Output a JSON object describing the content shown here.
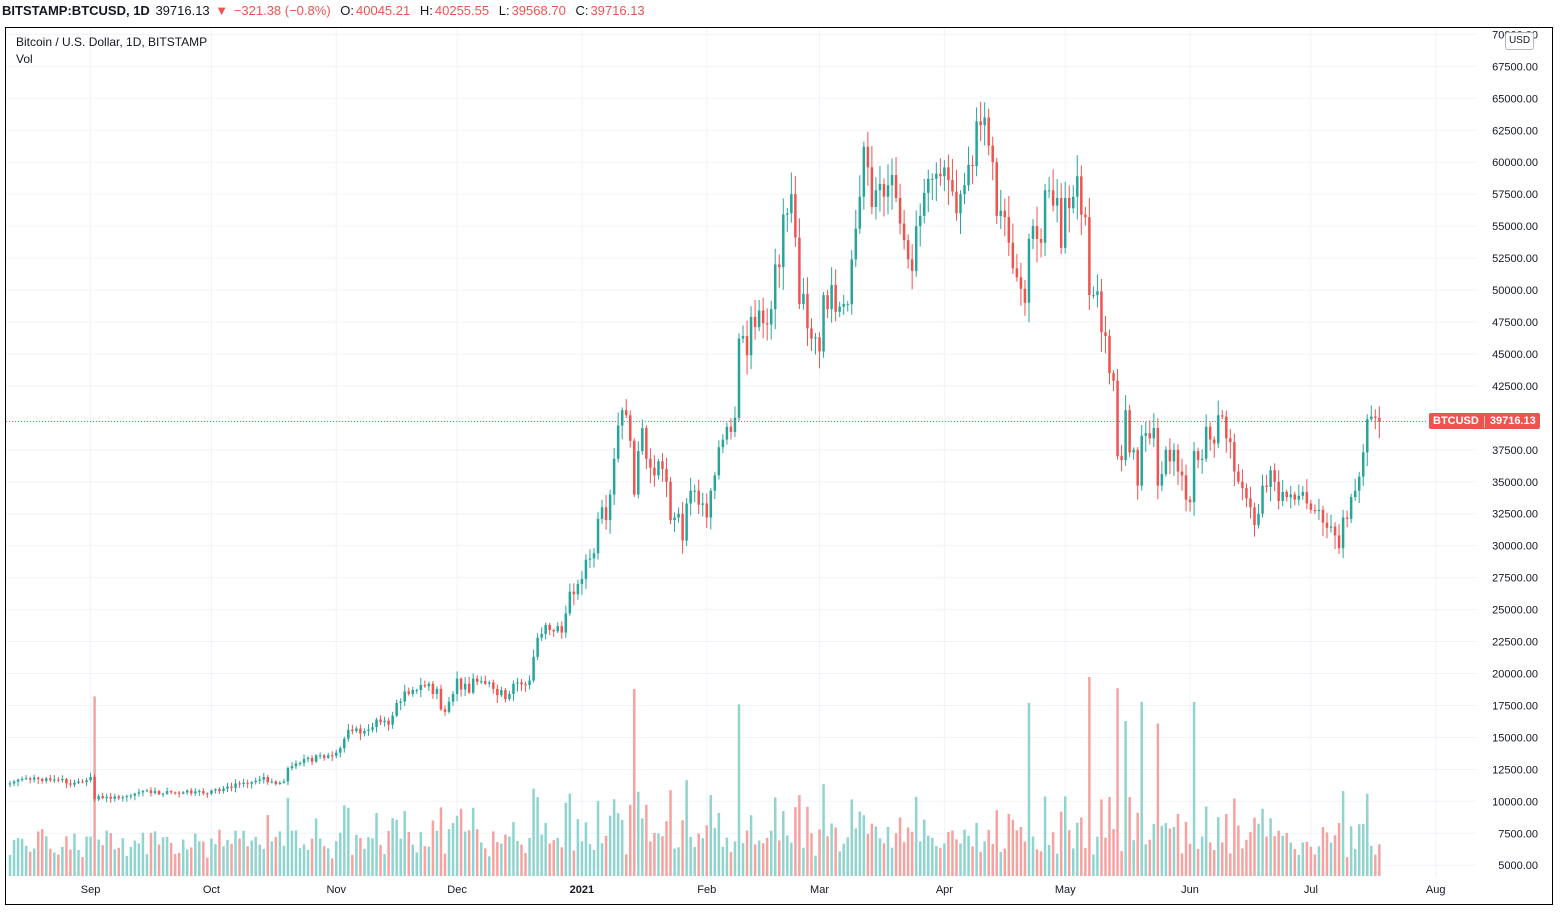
{
  "header": {
    "symbol": "BITSTAMP:BTCUSD, 1D",
    "last": "39716.13",
    "change_arrow": "▼",
    "change": "−321.38 (−0.8%)",
    "open_label": "O:",
    "open": "40045.21",
    "high_label": "H:",
    "high": "40255.55",
    "low_label": "L:",
    "low": "39568.70",
    "close_label": "C:",
    "close": "39716.13"
  },
  "legend": {
    "title": "Bitcoin / U.S. Dollar, 1D, BITSTAMP",
    "volume_label": "Vol"
  },
  "currency": "USD",
  "price_tag": {
    "symbol": "BTCUSD",
    "value": "39716.13"
  },
  "colors": {
    "up": "#26a69a",
    "down": "#ef5350",
    "up_volume": "#8fd4ce",
    "down_volume": "#f5a3a1",
    "grid": "#f0f3fa",
    "last_price_line": "#ef5350"
  },
  "chart_data": {
    "type": "candlestick",
    "title": "Bitcoin / U.S. Dollar, 1D, BITSTAMP",
    "y_axis": {
      "min": 4000,
      "max": 70500,
      "ticks": [
        5000,
        7500,
        10000,
        12500,
        15000,
        17500,
        20000,
        22500,
        25000,
        27500,
        30000,
        32500,
        35000,
        37500,
        40000,
        42500,
        45000,
        47500,
        50000,
        52500,
        55000,
        57500,
        60000,
        62500,
        65000,
        67500,
        70000
      ],
      "tick_labels": [
        "5000.00",
        "7500.00",
        "10000.00",
        "12500.00",
        "15000.00",
        "17500.00",
        "20000.00",
        "22500.00",
        "25000.00",
        "27500.00",
        "30000.00",
        "32500.00",
        "35000.00",
        "37500.00",
        "40000.00",
        "42500.00",
        "45000.00",
        "47500.00",
        "50000.00",
        "52500.00",
        "55000.00",
        "57500.00",
        "60000.00",
        "62500.00",
        "65000.00",
        "67500.00",
        "70000.00"
      ]
    },
    "x_axis": {
      "start_date": "2020-08-11",
      "end_date": "2021-08-11",
      "ticks": [
        {
          "date": "2020-09-01",
          "label": "Sep"
        },
        {
          "date": "2020-10-01",
          "label": "Oct"
        },
        {
          "date": "2020-11-01",
          "label": "Nov"
        },
        {
          "date": "2020-12-01",
          "label": "Dec"
        },
        {
          "date": "2021-01-01",
          "label": "2021"
        },
        {
          "date": "2021-02-01",
          "label": "Feb"
        },
        {
          "date": "2021-03-01",
          "label": "Mar"
        },
        {
          "date": "2021-04-01",
          "label": "Apr"
        },
        {
          "date": "2021-05-01",
          "label": "May"
        },
        {
          "date": "2021-06-01",
          "label": "Jun"
        },
        {
          "date": "2021-07-01",
          "label": "Jul"
        },
        {
          "date": "2021-08-01",
          "label": "Aug"
        }
      ]
    },
    "series_start_date": "2020-08-12",
    "closes": [
      11400,
      11550,
      11700,
      11750,
      11800,
      11700,
      11850,
      11750,
      11600,
      11800,
      11650,
      11700,
      11650,
      11750,
      11400,
      11300,
      11450,
      11550,
      11500,
      11650,
      11900,
      10150,
      10400,
      10250,
      10350,
      10200,
      10380,
      10250,
      10320,
      10400,
      10450,
      10600,
      10700,
      10800,
      10850,
      10650,
      10800,
      10550,
      10600,
      10800,
      10700,
      10680,
      10600,
      10700,
      10850,
      10620,
      10770,
      10800,
      10620,
      10600,
      10850,
      10950,
      10800,
      11000,
      11150,
      11050,
      11400,
      11350,
      11450,
      11380,
      11500,
      11600,
      11700,
      11900,
      11500,
      11550,
      11350,
      11450,
      11550,
      12600,
      12750,
      12950,
      13000,
      13300,
      13400,
      13100,
      13600,
      13600,
      13400,
      13600,
      13560,
      13800,
      14150,
      14900,
      15600,
      15500,
      15700,
      15300,
      15500,
      15600,
      15800,
      16400,
      16200,
      16300,
      16000,
      16700,
      17700,
      17800,
      18600,
      18400,
      18700,
      18700,
      19100,
      19000,
      19200,
      18400,
      18800,
      17200,
      17000,
      17800,
      18400,
      19600,
      18750,
      19200,
      18500,
      19600,
      19350,
      19400,
      19200,
      19300,
      18800,
      18300,
      18700,
      18000,
      18400,
      19200,
      19300,
      19150,
      19100,
      19450,
      21300,
      22800,
      23100,
      23800,
      23400,
      23300,
      23700,
      23200,
      24700,
      26400,
      26200,
      27000,
      27400,
      28900,
      29000,
      29400,
      32100,
      33000,
      32000,
      34000,
      36800,
      39400,
      40600,
      40200,
      38200,
      34000,
      37400,
      39200,
      36800,
      36100,
      35500,
      36600,
      36000,
      35000,
      32000,
      32200,
      32500,
      30400,
      33300,
      34300,
      34300,
      33200,
      33300,
      32200,
      34300,
      35500,
      37700,
      38300,
      39300,
      38900,
      40000,
      46200,
      46400,
      44900,
      47900,
      47100,
      48400,
      47400,
      47300,
      48500,
      52000,
      51800,
      55900,
      56000,
      57500,
      54100,
      48900,
      49700,
      47000,
      46200,
      46300,
      45200,
      49600,
      48500,
      50400,
      48300,
      48700,
      48900,
      48900,
      52400,
      54800,
      57300,
      61200,
      59600,
      56500,
      57800,
      58300,
      57300,
      58200,
      59000,
      57200,
      55200,
      53900,
      52400,
      51500,
      55000,
      55800,
      57600,
      58700,
      58700,
      59100,
      58900,
      59600,
      58600,
      57700,
      56000,
      57500,
      58200,
      59800,
      59700,
      63200,
      62900,
      63500,
      61300,
      60000,
      55800,
      56200,
      55700,
      53700,
      51700,
      51000,
      50100,
      49000,
      54000,
      55000,
      54000,
      53700,
      57800,
      57800,
      56600,
      57200,
      53300,
      57200,
      56400,
      57300,
      58900,
      55900,
      55700,
      49600,
      49600,
      49900,
      46700,
      46400,
      43500,
      42900,
      37000,
      36700,
      40600,
      37300,
      37500,
      34700,
      38600,
      38800,
      38400,
      39200,
      34700,
      35600,
      37500,
      36600,
      37500,
      35800,
      35500,
      33600,
      33400,
      37400,
      36700,
      36800,
      39300,
      38300,
      38000,
      40200,
      40100,
      38400,
      38100,
      35800,
      35000,
      34500,
      33700,
      33000,
      31600,
      32500,
      34700,
      34600,
      35900,
      35000,
      33500,
      34200,
      33800,
      34000,
      33600,
      33900,
      34200,
      33300,
      32800,
      32700,
      32800,
      31800,
      31400,
      31500,
      30800,
      29800,
      32200,
      32100,
      33800,
      34300,
      35400,
      37300,
      39900,
      40100,
      40000,
      39716
    ]
  }
}
